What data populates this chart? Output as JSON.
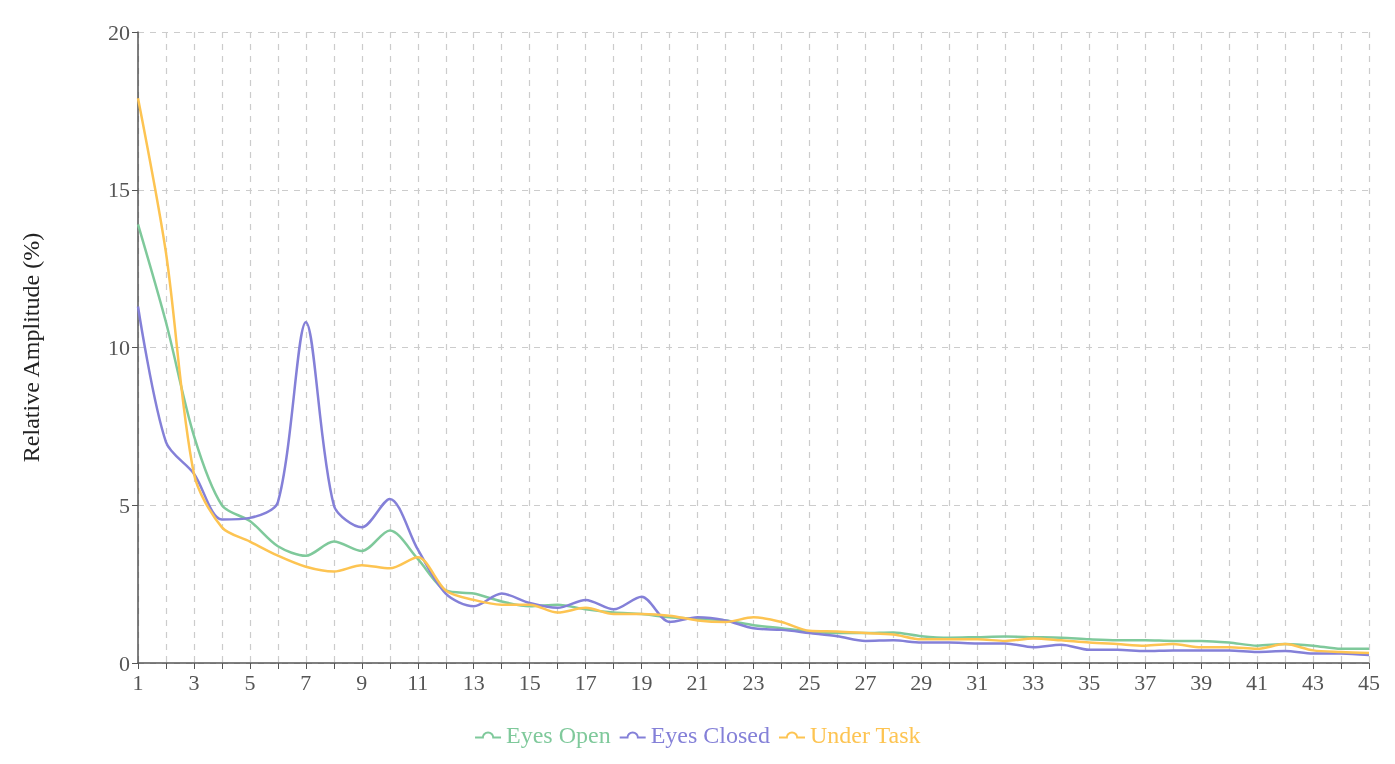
{
  "chart_data": {
    "type": "line",
    "ylabel": "Relative Amplitude (%)",
    "x": [
      1,
      2,
      3,
      4,
      5,
      6,
      7,
      8,
      9,
      10,
      11,
      12,
      13,
      14,
      15,
      16,
      17,
      18,
      19,
      20,
      21,
      22,
      23,
      24,
      25,
      26,
      27,
      28,
      29,
      30,
      31,
      32,
      33,
      34,
      35,
      36,
      37,
      38,
      39,
      40,
      41,
      42,
      43,
      44,
      45
    ],
    "xlim": [
      1,
      45
    ],
    "xticks": [
      1,
      {
        "value": 2,
        "label": null
      },
      3,
      {
        "value": 4,
        "label": null
      },
      5,
      {
        "value": 6,
        "label": null
      },
      7,
      {
        "value": 8,
        "label": null
      },
      9,
      {
        "value": 10,
        "label": null
      },
      11,
      {
        "value": 12,
        "label": null
      },
      13,
      {
        "value": 14,
        "label": null
      },
      15,
      {
        "value": 16,
        "label": null
      },
      17,
      {
        "value": 18,
        "label": null
      },
      19,
      {
        "value": 20,
        "label": null
      },
      21,
      {
        "value": 22,
        "label": null
      },
      23,
      {
        "value": 24,
        "label": null
      },
      25,
      {
        "value": 26,
        "label": null
      },
      27,
      {
        "value": 28,
        "label": null
      },
      29,
      {
        "value": 30,
        "label": null
      },
      31,
      {
        "value": 32,
        "label": null
      },
      33,
      {
        "value": 34,
        "label": null
      },
      35,
      {
        "value": 36,
        "label": null
      },
      37,
      {
        "value": 38,
        "label": null
      },
      39,
      {
        "value": 40,
        "label": null
      },
      41,
      {
        "value": 42,
        "label": null
      },
      43,
      {
        "value": 44,
        "label": null
      },
      45
    ],
    "series": [
      {
        "name": "Eyes Open",
        "color": "#7fc99b",
        "values": [
          13.9,
          10.8,
          7.2,
          5.0,
          4.5,
          3.7,
          3.4,
          3.85,
          3.55,
          4.2,
          3.3,
          2.3,
          2.2,
          1.95,
          1.8,
          1.85,
          1.7,
          1.6,
          1.55,
          1.45,
          1.4,
          1.35,
          1.2,
          1.1,
          1.0,
          0.95,
          0.95,
          0.97,
          0.85,
          0.8,
          0.82,
          0.84,
          0.82,
          0.8,
          0.75,
          0.72,
          0.72,
          0.7,
          0.7,
          0.65,
          0.55,
          0.6,
          0.55,
          0.45,
          0.45
        ]
      },
      {
        "name": "Eyes Closed",
        "color": "#8480d8",
        "values": [
          11.3,
          7.0,
          6.0,
          4.55,
          4.6,
          5.1,
          10.8,
          5.0,
          4.3,
          5.2,
          3.6,
          2.2,
          1.8,
          2.2,
          1.9,
          1.75,
          2.0,
          1.7,
          2.1,
          1.3,
          1.45,
          1.35,
          1.1,
          1.05,
          0.95,
          0.85,
          0.7,
          0.72,
          0.65,
          0.65,
          0.62,
          0.62,
          0.5,
          0.58,
          0.42,
          0.42,
          0.38,
          0.4,
          0.4,
          0.4,
          0.35,
          0.38,
          0.3,
          0.3,
          0.25
        ]
      },
      {
        "name": "Under Task",
        "color": "#fdc452",
        "values": [
          17.9,
          13.0,
          6.0,
          4.3,
          3.85,
          3.4,
          3.05,
          2.9,
          3.1,
          3.0,
          3.35,
          2.3,
          2.0,
          1.85,
          1.85,
          1.6,
          1.75,
          1.55,
          1.55,
          1.5,
          1.35,
          1.3,
          1.45,
          1.3,
          1.02,
          1.0,
          0.95,
          0.9,
          0.75,
          0.75,
          0.75,
          0.7,
          0.78,
          0.72,
          0.65,
          0.6,
          0.55,
          0.6,
          0.5,
          0.5,
          0.45,
          0.6,
          0.4,
          0.35,
          0.32
        ]
      }
    ],
    "ylim": [
      0,
      20
    ],
    "yticks": [
      0,
      5,
      10,
      15,
      20
    ],
    "grid": true,
    "legend": "bottom",
    "marker": "none",
    "line_style": "solid"
  }
}
